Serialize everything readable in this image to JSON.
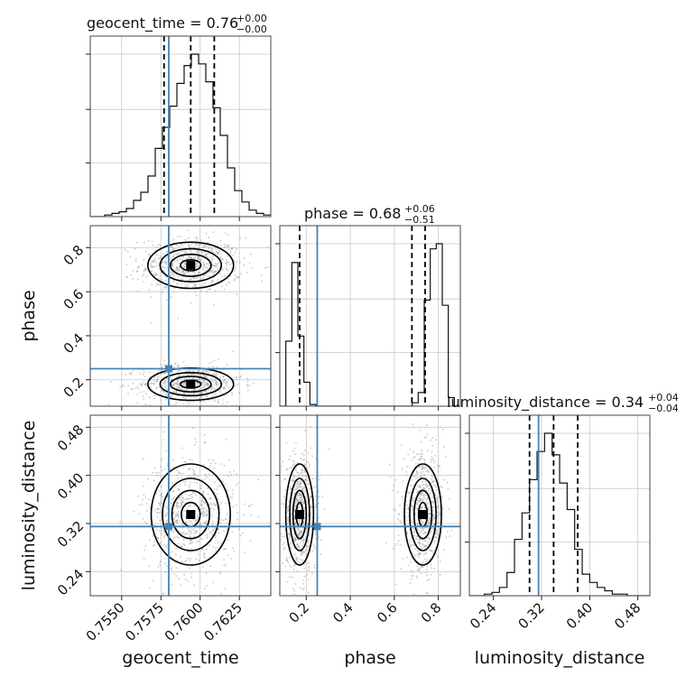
{
  "chart_data": {
    "type": "corner",
    "parameters": [
      "geocent_time",
      "phase",
      "luminosity_distance"
    ],
    "ranges": {
      "geocent_time": [
        0.753,
        0.7645
      ],
      "phase": [
        0.08,
        0.9
      ],
      "luminosity_distance": [
        0.2,
        0.5
      ]
    },
    "ticks": {
      "geocent_time": {
        "values": [
          0.755,
          0.7575,
          0.76,
          0.7625
        ],
        "labels": [
          "0.7550",
          "0.7575",
          "0.7600",
          "0.7625"
        ]
      },
      "phase": {
        "values": [
          0.2,
          0.4,
          0.6,
          0.8
        ],
        "labels": [
          "0.2",
          "0.4",
          "0.6",
          "0.8"
        ]
      },
      "luminosity_distance": {
        "values": [
          0.24,
          0.32,
          0.4,
          0.48
        ],
        "labels": [
          "0.24",
          "0.32",
          "0.40",
          "0.48"
        ]
      }
    },
    "truths": {
      "geocent_time": 0.758,
      "phase": 0.25,
      "luminosity_distance": 0.315
    },
    "titles": [
      {
        "param": "geocent_time",
        "text": "geocent_time = 0.76",
        "upper": "+0.00",
        "lower": "−0.00"
      },
      {
        "param": "phase",
        "text": "phase = 0.68",
        "upper": "+0.06",
        "lower": "−0.51"
      },
      {
        "param": "luminosity_distance",
        "text": "luminosity_distance = 0.34",
        "upper": "+0.04",
        "lower": "−0.04"
      }
    ],
    "quantiles": {
      "geocent_time": [
        0.7577,
        0.7594,
        0.7609
      ],
      "phase": [
        0.17,
        0.68,
        0.74
      ],
      "luminosity_distance": [
        0.3,
        0.34,
        0.38
      ]
    },
    "histograms": {
      "geocent_time": {
        "edges": [
          0.753,
          0.7645
        ],
        "counts": [
          0,
          0,
          1,
          2,
          3,
          5,
          10,
          15,
          25,
          42,
          55,
          68,
          82,
          93,
          100,
          94,
          83,
          67,
          50,
          30,
          16,
          9,
          4,
          2,
          1
        ]
      },
      "phase": {
        "edges": [
          0.08,
          0.9
        ],
        "counts": [
          0,
          38,
          84,
          41,
          14,
          1,
          0,
          0,
          0,
          0,
          0,
          0,
          0,
          0,
          0,
          0,
          0,
          0,
          0,
          0,
          0,
          0,
          2,
          8,
          62,
          92,
          95,
          59,
          5,
          0
        ]
      },
      "luminosity_distance": {
        "edges": [
          0.2,
          0.5
        ],
        "counts": [
          0,
          0,
          1,
          2,
          5,
          14,
          34,
          50,
          70,
          87,
          98,
          85,
          68,
          52,
          28,
          13,
          8,
          5,
          3,
          1,
          1,
          0,
          0,
          0
        ]
      }
    },
    "blobs": [
      {
        "x": "geocent_time",
        "y": "phase",
        "cx": 0.7594,
        "cy": 0.72,
        "sx": 0.0013,
        "sy": 0.05
      },
      {
        "x": "geocent_time",
        "y": "phase",
        "cx": 0.7594,
        "cy": 0.18,
        "sx": 0.0013,
        "sy": 0.035
      },
      {
        "x": "geocent_time",
        "y": "luminosity_distance",
        "cx": 0.7594,
        "cy": 0.335,
        "sx": 0.0012,
        "sy": 0.04
      },
      {
        "x": "phase",
        "y": "luminosity_distance",
        "cx": 0.17,
        "cy": 0.335,
        "sx": 0.03,
        "sy": 0.04
      },
      {
        "x": "phase",
        "y": "luminosity_distance",
        "cx": 0.73,
        "cy": 0.335,
        "sx": 0.04,
        "sy": 0.04
      }
    ]
  }
}
